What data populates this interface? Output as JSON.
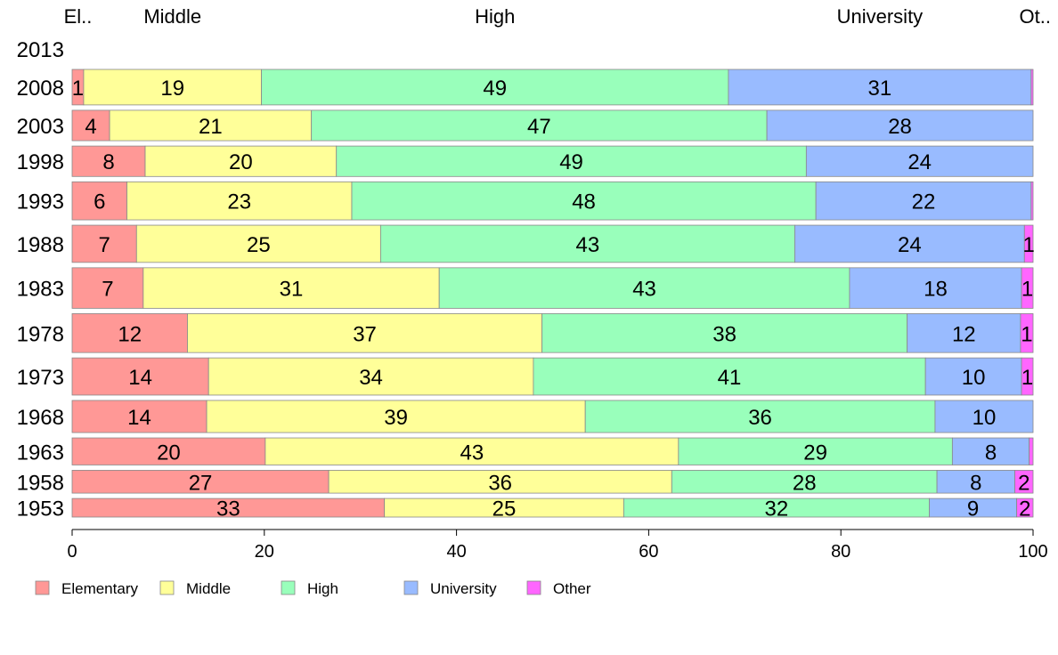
{
  "chart_data": {
    "type": "bar",
    "orientation": "horizontal",
    "stacked": true,
    "categories": [
      "2013",
      "2008",
      "2003",
      "1998",
      "1993",
      "1988",
      "1983",
      "1978",
      "1973",
      "1968",
      "1963",
      "1958",
      "1953"
    ],
    "column_headers": [
      "El..",
      "Middle",
      "High",
      "University",
      "Ot.."
    ],
    "series": [
      {
        "name": "Elementary",
        "color": "#ff9896",
        "values": [
          null,
          1.2,
          3.9,
          7.6,
          5.7,
          6.7,
          7.4,
          12.0,
          14.2,
          14.0,
          20.1,
          26.7,
          32.5
        ]
      },
      {
        "name": "Middle",
        "color": "#ffff99",
        "values": [
          null,
          18.5,
          21.0,
          19.9,
          23.4,
          25.4,
          30.8,
          36.9,
          33.8,
          39.4,
          43.0,
          35.7,
          24.9
        ]
      },
      {
        "name": "High",
        "color": "#99ffbb",
        "values": [
          null,
          48.6,
          47.4,
          48.9,
          48.3,
          43.1,
          42.7,
          38.0,
          40.8,
          36.4,
          28.5,
          27.6,
          31.8
        ]
      },
      {
        "name": "University",
        "color": "#99bbff",
        "values": [
          null,
          31.5,
          27.7,
          23.6,
          22.4,
          23.9,
          17.9,
          11.8,
          10.0,
          10.2,
          8.0,
          8.1,
          9.1
        ]
      },
      {
        "name": "Other",
        "color": "#ff66ff",
        "values": [
          null,
          0.2,
          0.0,
          0.0,
          0.2,
          0.9,
          1.2,
          1.3,
          1.2,
          0.0,
          0.4,
          1.9,
          1.7
        ]
      }
    ],
    "labels": [
      [
        null,
        null,
        null,
        null,
        null
      ],
      [
        "1",
        "19",
        "49",
        "31",
        ""
      ],
      [
        "4",
        "21",
        "47",
        "28",
        ""
      ],
      [
        "8",
        "20",
        "49",
        "24",
        ""
      ],
      [
        "6",
        "23",
        "48",
        "22",
        ""
      ],
      [
        "7",
        "25",
        "43",
        "24",
        "1"
      ],
      [
        "7",
        "31",
        "43",
        "18",
        "1"
      ],
      [
        "12",
        "37",
        "38",
        "12",
        "1"
      ],
      [
        "14",
        "34",
        "41",
        "10",
        "1"
      ],
      [
        "14",
        "39",
        "36",
        "10",
        ""
      ],
      [
        "20",
        "43",
        "29",
        "8",
        ""
      ],
      [
        "27",
        "36",
        "28",
        "8",
        "2"
      ],
      [
        "33",
        "25",
        "32",
        "9",
        "2"
      ]
    ],
    "row_weights": [
      0,
      42,
      36,
      36,
      45,
      44,
      48,
      46,
      44,
      38,
      32,
      27,
      22
    ],
    "xlim": [
      0,
      100
    ],
    "xticks": [
      0,
      20,
      40,
      60,
      80,
      100
    ],
    "legend_position": "bottom",
    "grid": false
  }
}
